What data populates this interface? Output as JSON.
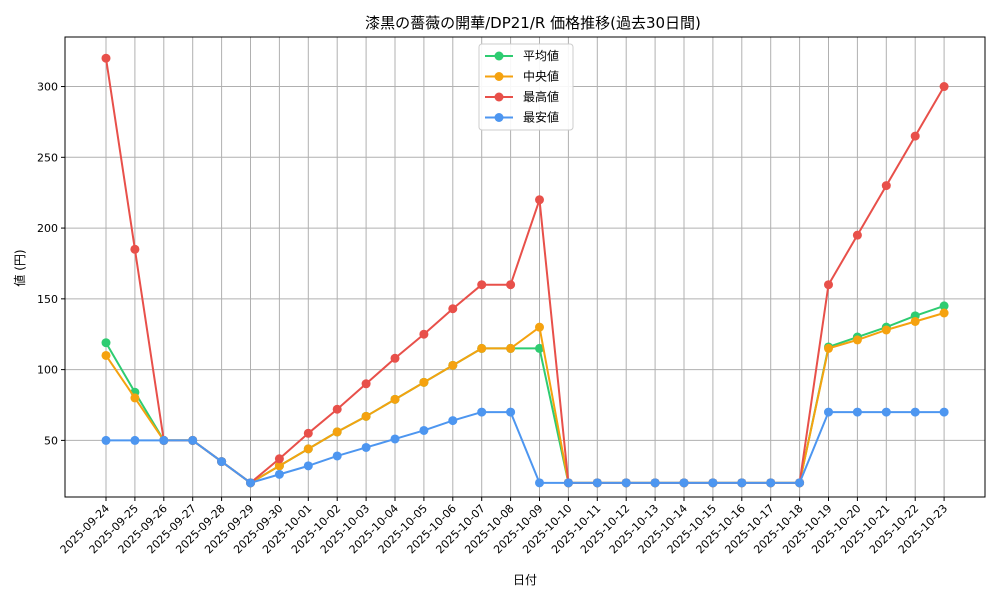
{
  "chart_data": {
    "type": "line",
    "title": "漆黒の薔薇の開華/DP21/R 価格推移(過去30日間)",
    "xlabel": "日付",
    "ylabel": "値 (円)",
    "ylim": [
      10,
      335
    ],
    "yticks": [
      50,
      100,
      150,
      200,
      250,
      300
    ],
    "grid": true,
    "legend_position": "top-center",
    "x": [
      "2025-09-24",
      "2025-09-25",
      "2025-09-26",
      "2025-09-27",
      "2025-09-28",
      "2025-09-29",
      "2025-09-30",
      "2025-10-01",
      "2025-10-02",
      "2025-10-03",
      "2025-10-04",
      "2025-10-05",
      "2025-10-06",
      "2025-10-07",
      "2025-10-08",
      "2025-10-09",
      "2025-10-10",
      "2025-10-11",
      "2025-10-12",
      "2025-10-13",
      "2025-10-14",
      "2025-10-15",
      "2025-10-16",
      "2025-10-17",
      "2025-10-18",
      "2025-10-19",
      "2025-10-20",
      "2025-10-21",
      "2025-10-22",
      "2025-10-23"
    ],
    "series": [
      {
        "name": "平均値",
        "color": "#2ecc71",
        "values": [
          119,
          84,
          50,
          50,
          35,
          20,
          32,
          44,
          56,
          67,
          79,
          91,
          103,
          115,
          115,
          115,
          20,
          20,
          20,
          20,
          20,
          20,
          20,
          20,
          20,
          116,
          123,
          130,
          138,
          145
        ]
      },
      {
        "name": "中央値",
        "color": "#f5a20f",
        "values": [
          110,
          80,
          50,
          50,
          35,
          20,
          32,
          44,
          56,
          67,
          79,
          91,
          103,
          115,
          115,
          130,
          20,
          20,
          20,
          20,
          20,
          20,
          20,
          20,
          20,
          115,
          121,
          128,
          134,
          140
        ]
      },
      {
        "name": "最高値",
        "color": "#e8504a",
        "values": [
          320,
          185,
          50,
          50,
          35,
          20,
          37,
          55,
          72,
          90,
          108,
          125,
          143,
          160,
          160,
          220,
          20,
          20,
          20,
          20,
          20,
          20,
          20,
          20,
          20,
          160,
          195,
          230,
          265,
          300
        ]
      },
      {
        "name": "最安値",
        "color": "#4d96f0",
        "values": [
          50,
          50,
          50,
          50,
          35,
          20,
          26,
          32,
          39,
          45,
          51,
          57,
          64,
          70,
          70,
          20,
          20,
          20,
          20,
          20,
          20,
          20,
          20,
          20,
          20,
          70,
          70,
          70,
          70,
          70
        ]
      }
    ]
  }
}
